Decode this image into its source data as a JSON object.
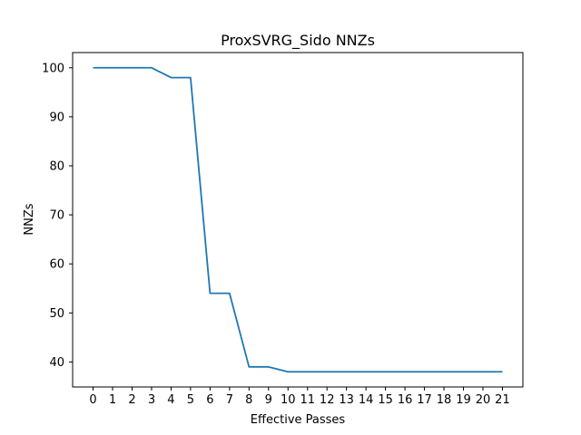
{
  "chart_data": {
    "type": "line",
    "title": "ProxSVRG_Sido NNZs",
    "xlabel": "Effective Passes",
    "ylabel": "NNZs",
    "x": [
      0,
      1,
      2,
      3,
      4,
      5,
      6,
      7,
      8,
      9,
      10,
      11,
      12,
      13,
      14,
      15,
      16,
      17,
      18,
      19,
      20,
      21
    ],
    "series": [
      {
        "values": [
          100,
          100,
          100,
          100,
          98,
          98,
          54,
          54,
          39,
          39,
          38,
          38,
          38,
          38,
          38,
          38,
          38,
          38,
          38,
          38,
          38,
          38
        ],
        "color": "#1f77b4"
      }
    ],
    "xticks": [
      "0",
      "1",
      "2",
      "3",
      "4",
      "5",
      "6",
      "7",
      "8",
      "9",
      "10",
      "11",
      "12",
      "13",
      "14",
      "15",
      "16",
      "17",
      "18",
      "19",
      "20",
      "21"
    ],
    "yticks": [
      40,
      50,
      60,
      70,
      80,
      90,
      100
    ],
    "xlim": [
      -1.05,
      22.05
    ],
    "ylim": [
      34.9,
      103.1
    ],
    "grid": false,
    "legend": "none"
  }
}
